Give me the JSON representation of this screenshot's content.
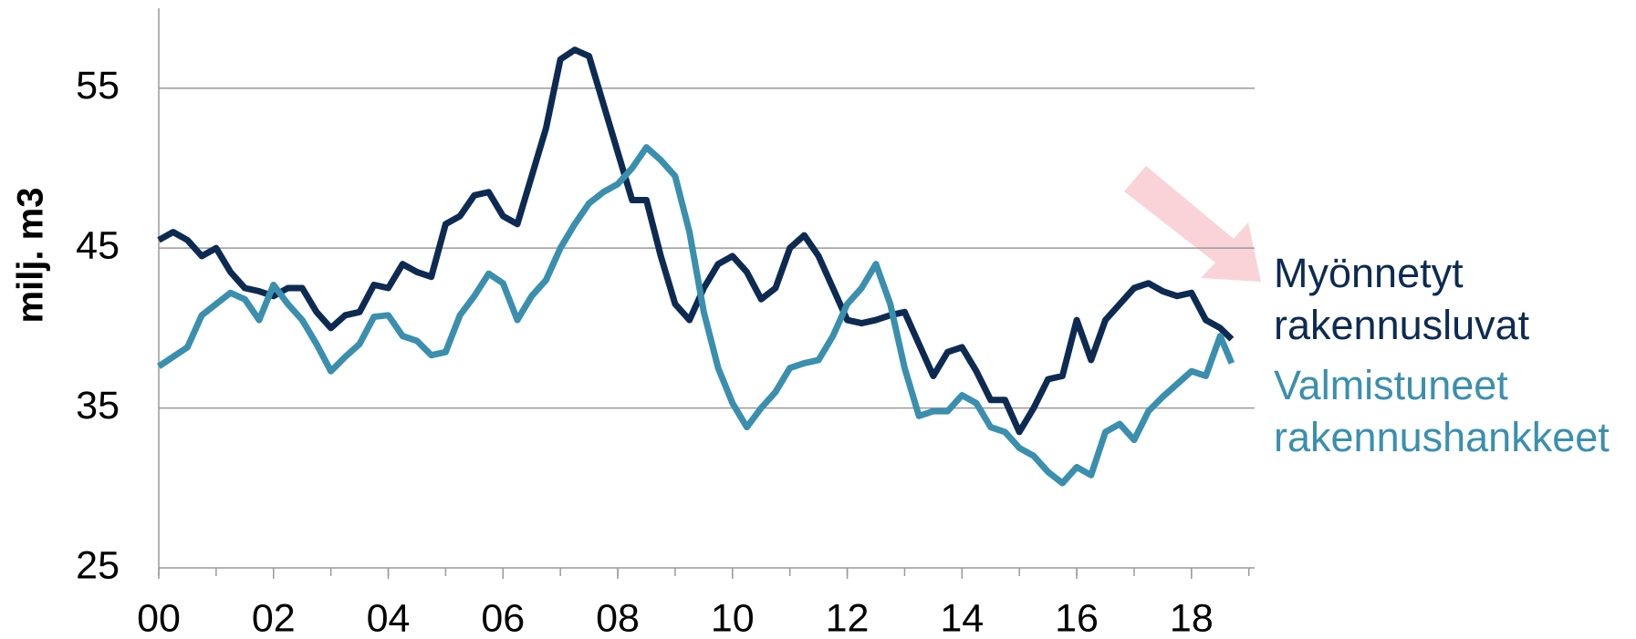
{
  "chart_data": {
    "type": "line",
    "ylabel": "milj. m3",
    "x": [
      0,
      0.25,
      0.5,
      0.75,
      1,
      1.25,
      1.5,
      1.75,
      2,
      2.25,
      2.5,
      2.75,
      3,
      3.25,
      3.5,
      3.75,
      4,
      4.25,
      4.5,
      4.75,
      5,
      5.25,
      5.5,
      5.75,
      6,
      6.25,
      6.5,
      6.75,
      7,
      7.25,
      7.5,
      7.75,
      8,
      8.25,
      8.5,
      8.75,
      9,
      9.25,
      9.5,
      9.75,
      10,
      10.25,
      10.5,
      10.75,
      11,
      11.25,
      11.5,
      11.75,
      12,
      12.25,
      12.5,
      12.75,
      13,
      13.25,
      13.5,
      13.75,
      14,
      14.25,
      14.5,
      14.75,
      15,
      15.25,
      15.5,
      15.75,
      16,
      16.25,
      16.5,
      16.75,
      17,
      17.25,
      17.5,
      17.75,
      18,
      18.25,
      18.5,
      18.7
    ],
    "series": [
      {
        "name": "Myönnetyt rakennusluvat",
        "color": "#0d2b52",
        "values": [
          45.5,
          46,
          45.5,
          44.5,
          45,
          43.5,
          42.5,
          42.3,
          42,
          42.5,
          42.5,
          41,
          40,
          40.8,
          41,
          42.7,
          42.5,
          44,
          43.5,
          43.2,
          46.5,
          47,
          48.3,
          48.5,
          47,
          46.5,
          49.5,
          52.5,
          56.8,
          57.4,
          57,
          54,
          51,
          48,
          48,
          44.5,
          41.5,
          40.5,
          42.5,
          44,
          44.5,
          43.5,
          41.8,
          42.5,
          45,
          45.8,
          44.5,
          42.5,
          40.5,
          40.3,
          40.5,
          40.8,
          41,
          39,
          37,
          38.5,
          38.8,
          37.3,
          35.5,
          35.5,
          33.5,
          35,
          36.8,
          37,
          40.5,
          38,
          40.5,
          41.5,
          42.5,
          42.8,
          42.3,
          42,
          42.2,
          40.5,
          40,
          39.3
        ]
      },
      {
        "name": "Valmistuneet rakennushankkeet",
        "color": "#3a8fae",
        "values": [
          37.6,
          38.2,
          38.8,
          40.8,
          41.5,
          42.2,
          41.8,
          40.5,
          42.7,
          41.5,
          40.5,
          39,
          37.3,
          38.2,
          39,
          40.7,
          40.8,
          39.5,
          39.2,
          38.3,
          38.5,
          40.8,
          42,
          43.4,
          42.8,
          40.5,
          42,
          43,
          45,
          46.5,
          47.8,
          48.5,
          49,
          50,
          51.3,
          50.5,
          49.5,
          46,
          41,
          37.5,
          35.3,
          33.8,
          35,
          36,
          37.5,
          37.8,
          38,
          39.5,
          41.5,
          42.5,
          44,
          41.5,
          37.5,
          34.5,
          34.8,
          34.8,
          35.8,
          35.3,
          33.8,
          33.5,
          32.5,
          32,
          31,
          30.3,
          31.3,
          30.8,
          33.5,
          34,
          33,
          34.8,
          35.7,
          36.5,
          37.3,
          37,
          39.5,
          37.8
        ]
      }
    ],
    "xlim": [
      0,
      19.1
    ],
    "xticks": [
      {
        "value": 0,
        "label": "00"
      },
      {
        "value": 2,
        "label": "02"
      },
      {
        "value": 4,
        "label": "04"
      },
      {
        "value": 6,
        "label": "06"
      },
      {
        "value": 8,
        "label": "08"
      },
      {
        "value": 10,
        "label": "10"
      },
      {
        "value": 12,
        "label": "12"
      },
      {
        "value": 14,
        "label": "14"
      },
      {
        "value": 16,
        "label": "16"
      },
      {
        "value": 18,
        "label": "18"
      }
    ],
    "ylim": [
      25,
      60
    ],
    "yticks": [
      25,
      35,
      45,
      55
    ],
    "grid": true
  }
}
